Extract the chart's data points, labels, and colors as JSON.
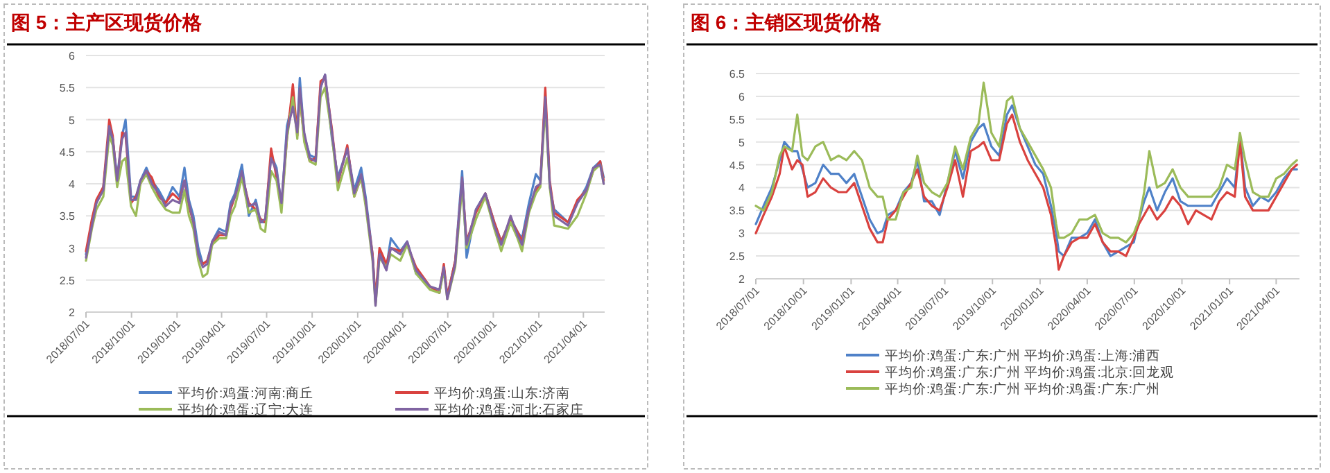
{
  "chart_data": [
    {
      "type": "line",
      "title": "图 5：主产区现货价格",
      "x": [
        "2018-07-01",
        "2018-07-13",
        "2018-07-22",
        "2018-08-05",
        "2018-08-17",
        "2018-08-24",
        "2018-09-02",
        "2018-09-12",
        "2018-09-19",
        "2018-09-30",
        "2018-10-10",
        "2018-10-19",
        "2018-10-31",
        "2018-11-11",
        "2018-11-25",
        "2018-12-09",
        "2018-12-23",
        "2019-01-06",
        "2019-01-16",
        "2019-01-25",
        "2019-02-03",
        "2019-02-13",
        "2019-02-22",
        "2019-03-03",
        "2019-03-13",
        "2019-03-27",
        "2019-04-10",
        "2019-04-19",
        "2019-04-28",
        "2019-05-12",
        "2019-05-26",
        "2019-06-09",
        "2019-06-19",
        "2019-06-28",
        "2019-07-10",
        "2019-07-21",
        "2019-07-31",
        "2019-08-11",
        "2019-08-23",
        "2019-09-01",
        "2019-09-06",
        "2019-09-15",
        "2019-09-26",
        "2019-10-08",
        "2019-10-18",
        "2019-10-27",
        "2019-11-10",
        "2019-11-22",
        "2019-12-11",
        "2019-12-25",
        "2020-01-08",
        "2020-01-17",
        "2020-01-31",
        "2020-02-06",
        "2020-02-14",
        "2020-02-28",
        "2020-03-08",
        "2020-03-27",
        "2020-04-10",
        "2020-04-28",
        "2020-05-26",
        "2020-06-14",
        "2020-06-23",
        "2020-06-30",
        "2020-07-16",
        "2020-07-30",
        "2020-08-08",
        "2020-08-27",
        "2020-09-15",
        "2020-10-03",
        "2020-10-17",
        "2020-11-05",
        "2020-11-19",
        "2020-11-28",
        "2020-12-12",
        "2020-12-26",
        "2021-01-04",
        "2021-01-14",
        "2021-01-23",
        "2021-02-01",
        "2021-03-01",
        "2021-03-20",
        "2021-04-07",
        "2021-04-21",
        "2021-05-05",
        "2021-05-12"
      ],
      "xlim": [
        "2018-07-01",
        "2021-05-14"
      ],
      "xticks": [
        {
          "value": "2018-07-01",
          "label": "2018/07/01"
        },
        {
          "value": "2018-10-01",
          "label": "2018/10/01"
        },
        {
          "value": "2019-01-01",
          "label": "2019/01/01"
        },
        {
          "value": "2019-04-01",
          "label": "2019/04/01"
        },
        {
          "value": "2019-07-01",
          "label": "2019/07/01"
        },
        {
          "value": "2019-10-01",
          "label": "2019/10/01"
        },
        {
          "value": "2020-01-01",
          "label": "2020/01/01"
        },
        {
          "value": "2020-04-01",
          "label": "2020/04/01"
        },
        {
          "value": "2020-07-01",
          "label": "2020/07/01"
        },
        {
          "value": "2020-10-01",
          "label": "2020/10/01"
        },
        {
          "value": "2021-01-01",
          "label": "2021/01/01"
        },
        {
          "value": "2021-04-01",
          "label": "2021/04/01"
        }
      ],
      "ylim": [
        2,
        6
      ],
      "yticks": [
        2,
        2.5,
        3,
        3.5,
        4,
        4.5,
        5,
        5.5,
        6
      ],
      "grid": "y",
      "legend": "bottom",
      "series": [
        {
          "name": "平均价:鸡蛋:河南:商丘",
          "color": "#4f81c8",
          "values": [
            2.9,
            3.4,
            3.7,
            3.95,
            4.8,
            4.7,
            4.1,
            4.75,
            5.0,
            3.8,
            3.8,
            4.05,
            4.25,
            4.05,
            3.9,
            3.7,
            3.95,
            3.8,
            4.25,
            3.75,
            3.5,
            3.0,
            2.75,
            2.8,
            3.1,
            3.3,
            3.25,
            3.7,
            3.85,
            4.3,
            3.5,
            3.75,
            3.4,
            3.4,
            4.45,
            4.25,
            3.65,
            4.9,
            5.3,
            4.85,
            5.65,
            4.75,
            4.45,
            4.4,
            5.5,
            5.7,
            4.7,
            4.1,
            4.55,
            3.9,
            4.25,
            3.8,
            2.9,
            2.15,
            2.95,
            2.7,
            3.15,
            2.95,
            3.1,
            2.6,
            2.4,
            2.3,
            2.7,
            2.25,
            2.8,
            4.2,
            2.85,
            3.6,
            3.85,
            3.4,
            3.1,
            3.45,
            3.25,
            3.15,
            3.7,
            4.15,
            4.05,
            5.35,
            3.95,
            3.6,
            3.4,
            3.7,
            3.95,
            4.25,
            4.35,
            4.1
          ]
        },
        {
          "name": "平均价:鸡蛋:山东:济南",
          "color": "#d9423f",
          "values": [
            2.95,
            3.45,
            3.75,
            3.95,
            5.0,
            4.75,
            4.0,
            4.8,
            4.75,
            3.7,
            3.8,
            4.0,
            4.2,
            4.1,
            3.8,
            3.7,
            3.85,
            3.75,
            4.05,
            3.65,
            3.4,
            2.85,
            2.75,
            2.8,
            3.05,
            3.2,
            3.2,
            3.6,
            3.8,
            4.15,
            3.7,
            3.6,
            3.45,
            3.4,
            4.55,
            4.1,
            3.65,
            4.7,
            5.55,
            4.75,
            5.35,
            4.7,
            4.35,
            4.4,
            5.6,
            5.65,
            4.85,
            4.0,
            4.6,
            3.8,
            4.1,
            3.7,
            2.9,
            2.2,
            3.0,
            2.75,
            3.0,
            2.95,
            3.05,
            2.7,
            2.4,
            2.3,
            2.75,
            2.25,
            2.8,
            4.05,
            3.1,
            3.55,
            3.85,
            3.4,
            3.1,
            3.45,
            3.25,
            3.1,
            3.6,
            3.9,
            4.0,
            5.5,
            4.05,
            3.55,
            3.4,
            3.75,
            3.9,
            4.2,
            4.35,
            4.05
          ]
        },
        {
          "name": "平均价:鸡蛋:辽宁:大连",
          "color": "#9bbb59",
          "values": [
            2.8,
            3.3,
            3.6,
            3.8,
            4.75,
            4.6,
            3.95,
            4.35,
            4.4,
            3.65,
            3.5,
            4.0,
            4.15,
            3.95,
            3.75,
            3.6,
            3.55,
            3.55,
            3.9,
            3.5,
            3.3,
            2.8,
            2.55,
            2.6,
            3.05,
            3.15,
            3.15,
            3.5,
            3.65,
            4.1,
            3.55,
            3.6,
            3.3,
            3.25,
            4.2,
            4.05,
            3.55,
            4.7,
            5.35,
            4.7,
            5.4,
            4.65,
            4.35,
            4.3,
            5.35,
            5.5,
            4.75,
            3.9,
            4.4,
            3.8,
            4.1,
            3.65,
            2.8,
            2.1,
            2.85,
            2.7,
            2.9,
            2.8,
            3.05,
            2.6,
            2.35,
            2.3,
            2.65,
            2.2,
            2.7,
            3.95,
            3.0,
            3.45,
            3.8,
            3.3,
            2.95,
            3.4,
            3.15,
            2.95,
            3.55,
            3.85,
            3.95,
            5.2,
            3.95,
            3.35,
            3.3,
            3.5,
            3.85,
            4.2,
            4.3,
            4.0
          ]
        },
        {
          "name": "平均价:鸡蛋:河北:石家庄",
          "color": "#8064a2",
          "values": [
            2.85,
            3.35,
            3.7,
            3.9,
            4.9,
            4.7,
            4.05,
            4.7,
            4.8,
            3.75,
            3.75,
            4.05,
            4.2,
            4.0,
            3.85,
            3.65,
            3.75,
            3.7,
            4.05,
            3.7,
            3.4,
            2.9,
            2.7,
            2.75,
            3.1,
            3.25,
            3.2,
            3.65,
            3.8,
            4.2,
            3.65,
            3.7,
            3.4,
            3.45,
            4.4,
            4.2,
            3.7,
            4.8,
            5.2,
            4.8,
            5.5,
            4.8,
            4.4,
            4.35,
            5.5,
            5.7,
            4.8,
            4.05,
            4.55,
            3.85,
            4.15,
            3.75,
            2.85,
            2.1,
            2.9,
            2.65,
            3.0,
            2.9,
            3.1,
            2.65,
            2.4,
            2.35,
            2.7,
            2.2,
            2.75,
            4.1,
            3.05,
            3.6,
            3.85,
            3.35,
            3.05,
            3.5,
            3.2,
            3.05,
            3.6,
            3.95,
            4.0,
            5.35,
            4.0,
            3.5,
            3.35,
            3.7,
            3.9,
            4.25,
            4.3,
            4.0
          ]
        }
      ]
    },
    {
      "type": "line",
      "title": "图 6：主销区现货价格",
      "x": [
        "2018-07-01",
        "2018-07-16",
        "2018-08-01",
        "2018-08-16",
        "2018-08-25",
        "2018-09-09",
        "2018-09-19",
        "2018-09-29",
        "2018-10-09",
        "2018-10-24",
        "2018-11-08",
        "2018-11-23",
        "2018-12-08",
        "2018-12-23",
        "2019-01-07",
        "2019-01-22",
        "2019-02-06",
        "2019-02-21",
        "2019-03-03",
        "2019-03-13",
        "2019-03-28",
        "2019-04-12",
        "2019-04-27",
        "2019-05-09",
        "2019-05-22",
        "2019-06-06",
        "2019-06-21",
        "2019-07-06",
        "2019-07-21",
        "2019-08-05",
        "2019-08-20",
        "2019-09-04",
        "2019-09-14",
        "2019-09-29",
        "2019-10-14",
        "2019-10-29",
        "2019-11-08",
        "2019-11-23",
        "2019-12-08",
        "2019-12-23",
        "2020-01-07",
        "2020-01-22",
        "2020-02-01",
        "2020-02-06",
        "2020-02-16",
        "2020-03-02",
        "2020-03-17",
        "2020-04-01",
        "2020-04-16",
        "2020-05-01",
        "2020-05-16",
        "2020-05-31",
        "2020-06-15",
        "2020-06-30",
        "2020-07-10",
        "2020-07-20",
        "2020-07-30",
        "2020-08-14",
        "2020-08-29",
        "2020-09-13",
        "2020-09-28",
        "2020-10-13",
        "2020-10-28",
        "2020-11-12",
        "2020-11-27",
        "2020-12-12",
        "2020-12-27",
        "2021-01-11",
        "2021-01-21",
        "2021-01-31",
        "2021-02-15",
        "2021-03-02",
        "2021-03-17",
        "2021-04-01",
        "2021-04-16",
        "2021-05-01",
        "2021-05-11"
      ],
      "xlim": [
        "2018-07-01",
        "2021-05-16"
      ],
      "xticks": [
        {
          "value": "2018-07-01",
          "label": "2018/07/01"
        },
        {
          "value": "2018-10-01",
          "label": "2018/10/01"
        },
        {
          "value": "2019-01-01",
          "label": "2019/01/01"
        },
        {
          "value": "2019-04-01",
          "label": "2019/04/01"
        },
        {
          "value": "2019-07-01",
          "label": "2019/07/01"
        },
        {
          "value": "2019-10-01",
          "label": "2019/10/01"
        },
        {
          "value": "2020-01-01",
          "label": "2020/01/01"
        },
        {
          "value": "2020-04-01",
          "label": "2020/04/01"
        },
        {
          "value": "2020-07-01",
          "label": "2020/07/01"
        },
        {
          "value": "2020-10-01",
          "label": "2020/10/01"
        },
        {
          "value": "2021-01-01",
          "label": "2021/01/01"
        },
        {
          "value": "2021-04-01",
          "label": "2021/04/01"
        }
      ],
      "ylim": [
        2,
        6.5
      ],
      "yticks": [
        2,
        2.5,
        3,
        3.5,
        4,
        4.5,
        5,
        5.5,
        6,
        6.5
      ],
      "grid": "y",
      "legend": "bottom",
      "series": [
        {
          "name": "平均价:鸡蛋:广东:广州 平均价:鸡蛋:上海:浦西",
          "color": "#4f81c8",
          "values": [
            3.2,
            3.6,
            4.0,
            4.6,
            5.0,
            4.8,
            4.8,
            4.4,
            4.0,
            4.1,
            4.5,
            4.3,
            4.3,
            4.1,
            4.3,
            3.8,
            3.3,
            3.0,
            3.05,
            3.4,
            3.5,
            3.9,
            4.1,
            4.6,
            3.7,
            3.7,
            3.4,
            4.1,
            4.8,
            4.2,
            5.0,
            5.3,
            5.4,
            4.9,
            4.7,
            5.6,
            5.8,
            5.3,
            4.9,
            4.5,
            4.3,
            3.6,
            3.0,
            2.6,
            2.5,
            2.9,
            2.9,
            3.0,
            3.3,
            2.8,
            2.5,
            2.6,
            2.7,
            2.8,
            3.3,
            3.7,
            4.0,
            3.5,
            3.9,
            4.2,
            3.7,
            3.6,
            3.6,
            3.6,
            3.6,
            3.9,
            4.2,
            4.0,
            5.1,
            4.0,
            3.6,
            3.8,
            3.7,
            3.9,
            4.2,
            4.4,
            4.4
          ]
        },
        {
          "name": "平均价:鸡蛋:广东:广州 平均价:鸡蛋:北京:回龙观",
          "color": "#d9423f",
          "values": [
            3.0,
            3.4,
            3.8,
            4.3,
            4.9,
            4.4,
            4.6,
            4.5,
            3.8,
            3.9,
            4.2,
            4.0,
            3.9,
            3.9,
            4.1,
            3.6,
            3.1,
            2.8,
            2.8,
            3.3,
            3.5,
            3.8,
            4.1,
            4.4,
            3.8,
            3.6,
            3.5,
            4.0,
            4.6,
            3.8,
            4.8,
            4.9,
            5.0,
            4.6,
            4.6,
            5.4,
            5.6,
            5.0,
            4.6,
            4.3,
            4.0,
            3.4,
            2.7,
            2.2,
            2.5,
            2.8,
            2.9,
            2.9,
            3.2,
            2.8,
            2.6,
            2.6,
            2.5,
            2.9,
            3.2,
            3.4,
            3.6,
            3.3,
            3.5,
            3.8,
            3.6,
            3.2,
            3.5,
            3.4,
            3.3,
            3.7,
            3.9,
            3.8,
            5.0,
            3.8,
            3.5,
            3.5,
            3.5,
            3.8,
            4.1,
            4.4,
            4.5
          ]
        },
        {
          "name": "平均价:鸡蛋:广东:广州 平均价:鸡蛋:广东:广州",
          "color": "#9bbb59",
          "values": [
            3.6,
            3.5,
            3.9,
            4.7,
            4.9,
            4.8,
            5.6,
            4.7,
            4.6,
            4.9,
            5.0,
            4.6,
            4.7,
            4.6,
            4.8,
            4.6,
            4.0,
            3.8,
            3.8,
            3.3,
            3.3,
            3.9,
            4.0,
            4.7,
            4.1,
            3.9,
            3.8,
            4.1,
            4.9,
            4.4,
            5.1,
            5.4,
            6.3,
            5.2,
            4.9,
            5.9,
            6.0,
            5.3,
            5.0,
            4.7,
            4.4,
            4.0,
            3.2,
            2.9,
            2.9,
            3.0,
            3.3,
            3.3,
            3.4,
            3.0,
            2.9,
            2.9,
            2.8,
            3.0,
            3.3,
            3.9,
            4.8,
            4.0,
            4.1,
            4.4,
            4.0,
            3.8,
            3.8,
            3.8,
            3.8,
            4.0,
            4.5,
            4.4,
            5.2,
            4.6,
            3.9,
            3.8,
            3.8,
            4.2,
            4.3,
            4.5,
            4.6
          ]
        }
      ]
    }
  ]
}
